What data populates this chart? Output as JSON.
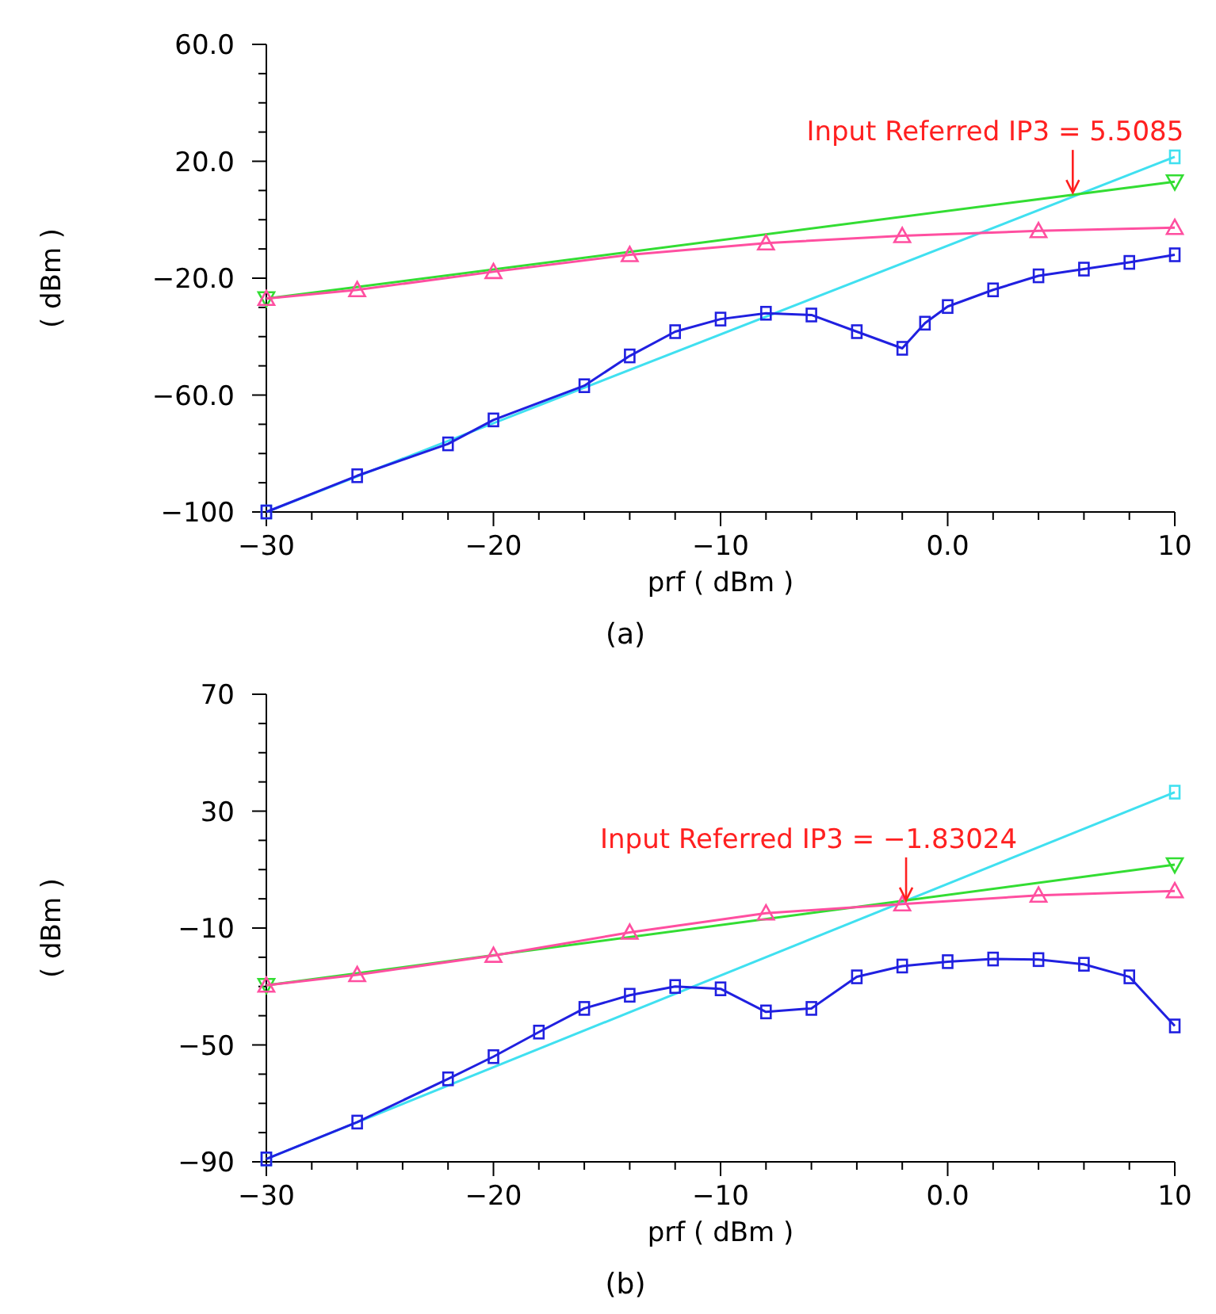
{
  "chart_data": [
    {
      "type": "line",
      "title": "(a)",
      "xlabel": "prf ( dBm )",
      "ylabel": "( dBm )",
      "xlim": [
        -30,
        10
      ],
      "ylim": [
        -100,
        60
      ],
      "xticks": [
        {
          "value": -30,
          "label": "−30"
        },
        {
          "value": -28,
          "label": null
        },
        {
          "value": -26,
          "label": null
        },
        {
          "value": -24,
          "label": null
        },
        {
          "value": -22,
          "label": null
        },
        {
          "value": -20,
          "label": "−20"
        },
        {
          "value": -18,
          "label": null
        },
        {
          "value": -16,
          "label": null
        },
        {
          "value": -14,
          "label": null
        },
        {
          "value": -12,
          "label": null
        },
        {
          "value": -10,
          "label": "−10"
        },
        {
          "value": -8,
          "label": null
        },
        {
          "value": -6,
          "label": null
        },
        {
          "value": -4,
          "label": null
        },
        {
          "value": -2,
          "label": null
        },
        {
          "value": 0,
          "label": "0.0"
        },
        {
          "value": 2,
          "label": null
        },
        {
          "value": 4,
          "label": null
        },
        {
          "value": 6,
          "label": null
        },
        {
          "value": 8,
          "label": null
        },
        {
          "value": 10,
          "label": "10"
        }
      ],
      "yticks": [
        {
          "value": -100,
          "label": "−100"
        },
        {
          "value": -90,
          "label": null
        },
        {
          "value": -80,
          "label": null
        },
        {
          "value": -70,
          "label": null
        },
        {
          "value": -60,
          "label": "−60.0"
        },
        {
          "value": -50,
          "label": null
        },
        {
          "value": -40,
          "label": null
        },
        {
          "value": -30,
          "label": null
        },
        {
          "value": -20,
          "label": "−20.0"
        },
        {
          "value": -10,
          "label": null
        },
        {
          "value": 0,
          "label": null
        },
        {
          "value": 10,
          "label": null
        },
        {
          "value": 20,
          "label": "20.0"
        },
        {
          "value": 30,
          "label": null
        },
        {
          "value": 40,
          "label": null
        },
        {
          "value": 50,
          "label": null
        },
        {
          "value": 60,
          "label": "60.0"
        }
      ],
      "series": [
        {
          "color": "#40e0f0",
          "marker": "square",
          "x": [
            -30,
            10
          ],
          "values": [
            -100,
            21.5
          ]
        },
        {
          "color": "#33dd33",
          "marker": "triangle-down",
          "x": [
            -30,
            10
          ],
          "values": [
            -27,
            13
          ]
        },
        {
          "color": "#ff4fa0",
          "marker": "triangle",
          "x": [
            -30,
            -26,
            -20,
            -14,
            -8,
            -2,
            4,
            10
          ],
          "values": [
            -27,
            -24,
            -17.8,
            -12,
            -8,
            -5.5,
            -3.8,
            -2.7
          ]
        },
        {
          "color": "#2020e0",
          "marker": "square",
          "x": [
            -30,
            -26,
            -22,
            -20,
            -16,
            -14,
            -12,
            -10,
            -8,
            -6,
            -4,
            -2,
            -1,
            0,
            2,
            4,
            6,
            8,
            10
          ],
          "values": [
            -100,
            -87.6,
            -76.7,
            -68.5,
            -56.8,
            -46.6,
            -38.3,
            -34,
            -32,
            -32.6,
            -38.3,
            -44,
            -35.4,
            -29.7,
            -24,
            -19.2,
            -16.9,
            -14.6,
            -12
          ]
        }
      ],
      "annotations": [
        {
          "text": "Input Referred IP3 = 5.5085",
          "x": 5.5085,
          "y": 8.7
        }
      ]
    },
    {
      "type": "line",
      "title": "(b)",
      "xlabel": "prf ( dBm )",
      "ylabel": "( dBm )",
      "xlim": [
        -30,
        10
      ],
      "ylim": [
        -90,
        70
      ],
      "xticks": [
        {
          "value": -30,
          "label": "−30"
        },
        {
          "value": -28,
          "label": null
        },
        {
          "value": -26,
          "label": null
        },
        {
          "value": -24,
          "label": null
        },
        {
          "value": -22,
          "label": null
        },
        {
          "value": -20,
          "label": "−20"
        },
        {
          "value": -18,
          "label": null
        },
        {
          "value": -16,
          "label": null
        },
        {
          "value": -14,
          "label": null
        },
        {
          "value": -12,
          "label": null
        },
        {
          "value": -10,
          "label": "−10"
        },
        {
          "value": -8,
          "label": null
        },
        {
          "value": -6,
          "label": null
        },
        {
          "value": -4,
          "label": null
        },
        {
          "value": -2,
          "label": null
        },
        {
          "value": 0,
          "label": "0.0"
        },
        {
          "value": 2,
          "label": null
        },
        {
          "value": 4,
          "label": null
        },
        {
          "value": 6,
          "label": null
        },
        {
          "value": 8,
          "label": null
        },
        {
          "value": 10,
          "label": "10"
        }
      ],
      "yticks": [
        {
          "value": -90,
          "label": "−90"
        },
        {
          "value": -80,
          "label": null
        },
        {
          "value": -70,
          "label": null
        },
        {
          "value": -60,
          "label": null
        },
        {
          "value": -50,
          "label": "−50"
        },
        {
          "value": -40,
          "label": null
        },
        {
          "value": -30,
          "label": null
        },
        {
          "value": -20,
          "label": null
        },
        {
          "value": -10,
          "label": "−10"
        },
        {
          "value": 0,
          "label": null
        },
        {
          "value": 10,
          "label": null
        },
        {
          "value": 20,
          "label": null
        },
        {
          "value": 30,
          "label": "30"
        },
        {
          "value": 40,
          "label": null
        },
        {
          "value": 50,
          "label": null
        },
        {
          "value": 60,
          "label": null
        },
        {
          "value": 70,
          "label": "70"
        }
      ],
      "series": [
        {
          "color": "#40e0f0",
          "marker": "square",
          "x": [
            -30,
            10
          ],
          "values": [
            -89,
            36.5
          ]
        },
        {
          "color": "#33dd33",
          "marker": "triangle-down",
          "x": [
            -30,
            10
          ],
          "values": [
            -29.6,
            11.7
          ]
        },
        {
          "color": "#ff4fa0",
          "marker": "triangle",
          "x": [
            -30,
            -26,
            -20,
            -14,
            -8,
            -2,
            4,
            10
          ],
          "values": [
            -29.6,
            -26,
            -19.4,
            -11.5,
            -4.9,
            -1.8,
            1.2,
            2.7
          ]
        },
        {
          "color": "#2020e0",
          "marker": "square",
          "x": [
            -30,
            -26,
            -22,
            -20,
            -18,
            -16,
            -14,
            -12,
            -10,
            -8,
            -6,
            -4,
            -2,
            0,
            2,
            4,
            6,
            8,
            10
          ],
          "values": [
            -89,
            -76.4,
            -61.6,
            -54,
            -45.6,
            -37.5,
            -33,
            -30,
            -30.8,
            -38.7,
            -37.5,
            -26.7,
            -23,
            -21.5,
            -20.6,
            -20.8,
            -22.4,
            -26.7,
            -43.5
          ]
        }
      ],
      "annotations": [
        {
          "text": "Input Referred IP3 = −1.83024",
          "x": -1.83024,
          "y": -1
        }
      ]
    }
  ]
}
